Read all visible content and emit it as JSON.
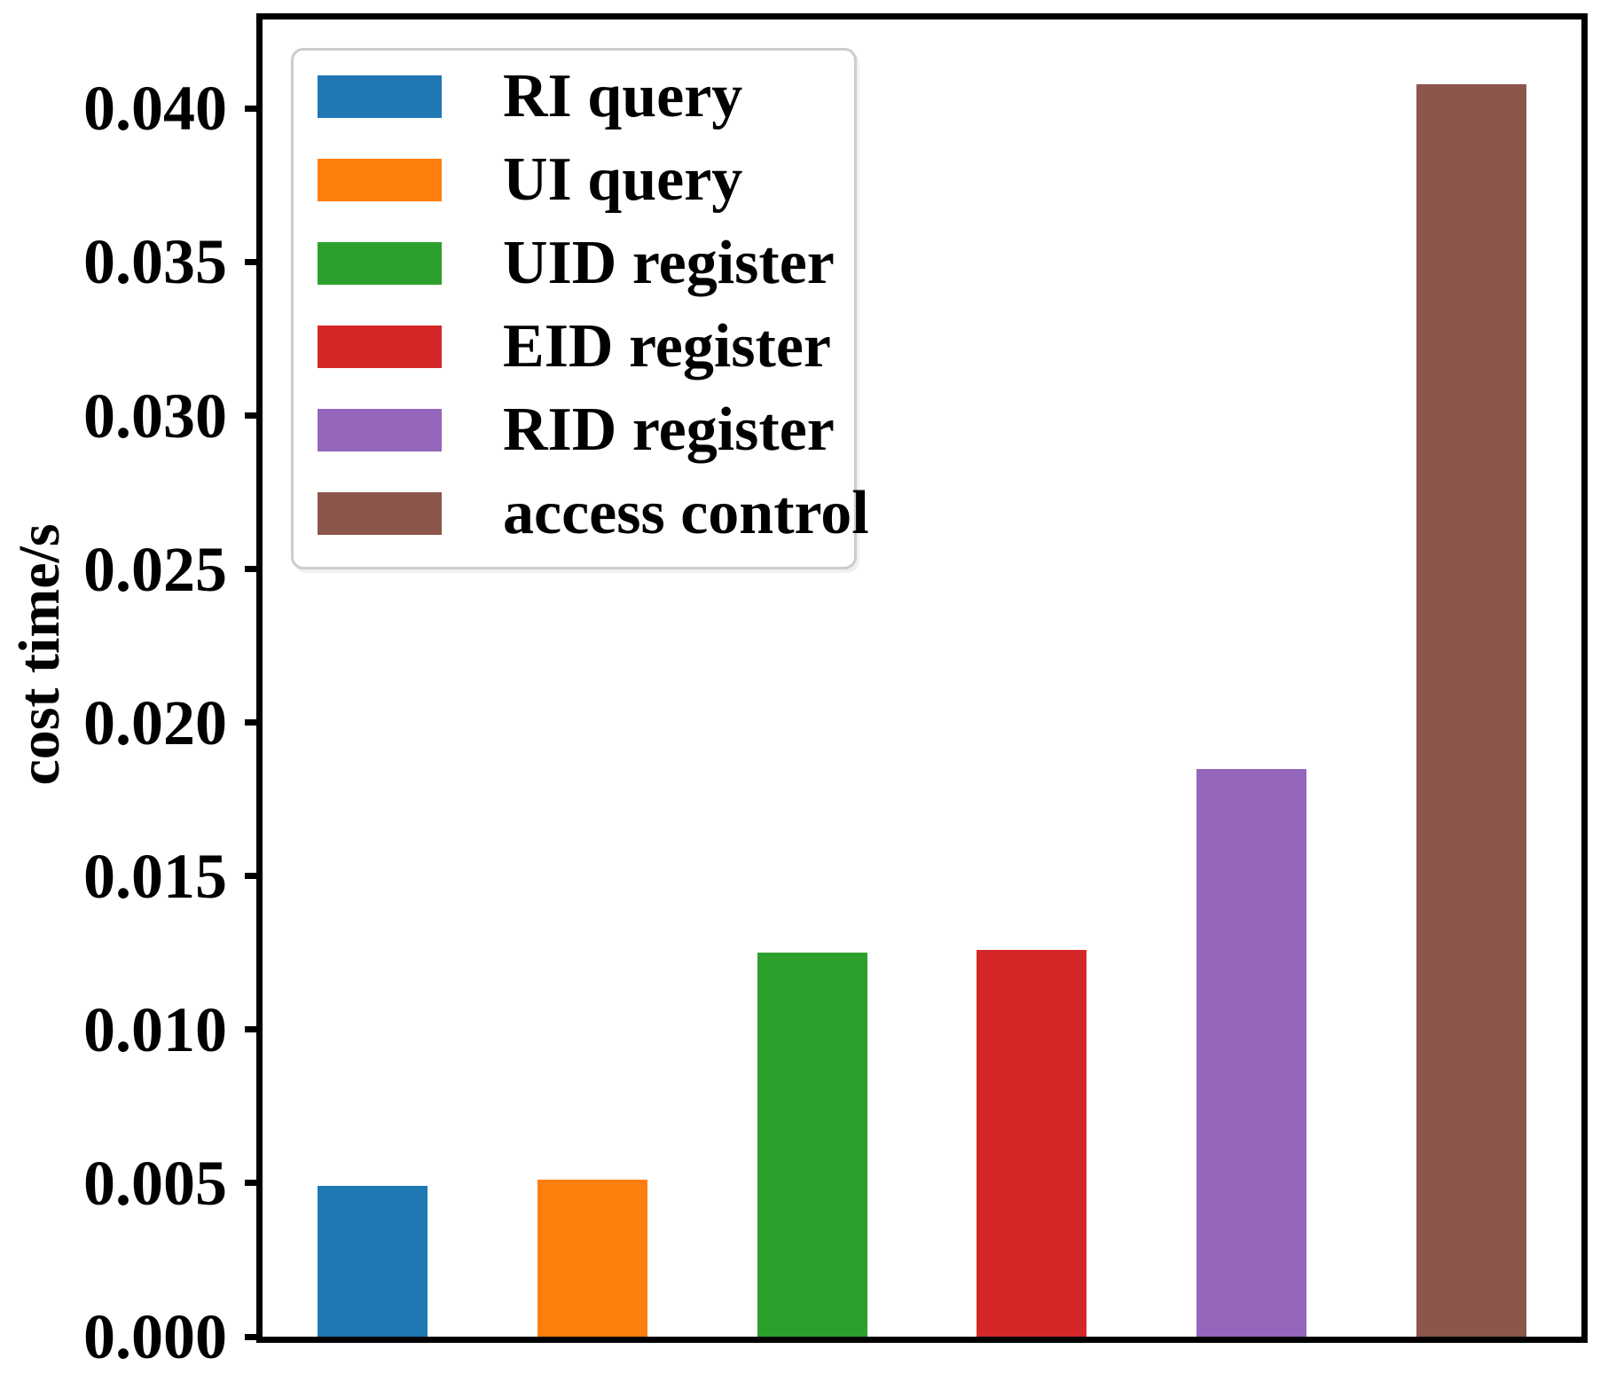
{
  "chart_data": {
    "type": "bar",
    "title": "",
    "xlabel": "",
    "ylabel": "cost time/s",
    "ylim": [
      0,
      0.0429
    ],
    "grid": false,
    "legend_position": "upper-left",
    "axis_color": "#000000",
    "legend_border_color": "#cccccc",
    "yticks": [
      {
        "value": 0.0,
        "label": "0.000"
      },
      {
        "value": 0.005,
        "label": "0.005"
      },
      {
        "value": 0.01,
        "label": "0.010"
      },
      {
        "value": 0.015,
        "label": "0.015"
      },
      {
        "value": 0.02,
        "label": "0.020"
      },
      {
        "value": 0.025,
        "label": "0.025"
      },
      {
        "value": 0.03,
        "label": "0.030"
      },
      {
        "value": 0.035,
        "label": "0.035"
      },
      {
        "value": 0.04,
        "label": "0.040"
      }
    ],
    "bars": [
      {
        "label": "RI query",
        "value": 0.0049,
        "color": "#1f77b4"
      },
      {
        "label": "UI query",
        "value": 0.0051,
        "color": "#ff7f0e"
      },
      {
        "label": "UID register",
        "value": 0.0125,
        "color": "#2ca02c"
      },
      {
        "label": "EID register",
        "value": 0.0126,
        "color": "#d62728"
      },
      {
        "label": "RID register",
        "value": 0.0185,
        "color": "#9467bd"
      },
      {
        "label": "access control",
        "value": 0.0408,
        "color": "#8c564b"
      }
    ]
  }
}
